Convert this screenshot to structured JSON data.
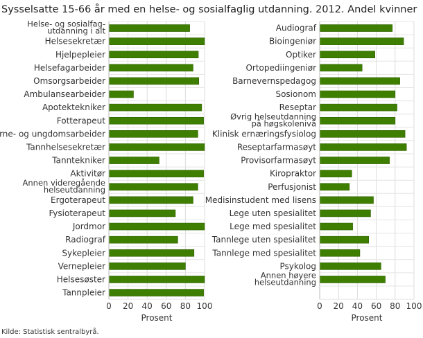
{
  "title": "Sysselsatte 15-66 år med en helse- og sosialfaglig utdanning. 2012. Andel kvinner",
  "source": "Kilde: Statistisk sentralbyrå.",
  "chart_data": [
    {
      "type": "bar",
      "orientation": "horizontal",
      "xlabel": "Prosent",
      "xlim": [
        0,
        100
      ],
      "xticks": [
        "0",
        "20",
        "40",
        "60",
        "80",
        "100"
      ],
      "grid": true,
      "bar_color": "#3e7e00",
      "categories": [
        "Helse- og sosialfag-\nutdanning i alt",
        "Helsesekretær",
        "Hjelpepleier",
        "Helsefagarbeider",
        "Omsorgsarbeider",
        "Ambulansearbeider",
        "Apotektekniker",
        "Fotterapeut",
        "Barne- og ungdomsarbeider",
        "Tannhelsesekretær",
        "Tanntekniker",
        "Aktivitør",
        "Annen videregående\nhelseutdanning",
        "Ergoterapeut",
        "Fysioterapeut",
        "Jordmor",
        "Radiograf",
        "Sykepleier",
        "Vernepleier",
        "Helsesøster",
        "Tannpleier"
      ],
      "values": [
        84.5,
        100,
        93.5,
        88,
        94,
        25.7,
        97,
        99,
        93,
        100,
        52.5,
        99,
        93,
        88,
        69.5,
        100,
        72,
        89,
        80,
        100,
        99
      ]
    },
    {
      "type": "bar",
      "orientation": "horizontal",
      "xlabel": "Prosent",
      "xlim": [
        0,
        100
      ],
      "xticks": [
        "0",
        "20",
        "40",
        "60",
        "80",
        "100"
      ],
      "grid": true,
      "bar_color": "#3e7e00",
      "categories": [
        "Audiograf",
        "Bioingeniør",
        "Optiker",
        "Ortopediingeniør",
        "Barnevernspedagog",
        "Sosionom",
        "Reseptar",
        "Øvrig helseutdanning\npå høgskolenivå",
        "Klinisk ernæringsfysiolog",
        "Reseptarfarmasøyt",
        "Provisorfarmasøyt",
        "Kiropraktor",
        "Perfusjonist",
        "Medisinstudent med lisens",
        "Lege uten spesialitet",
        "Lege med spesialitet",
        "Tannlege uten spesialitet",
        "Tannlege med spesialitet",
        "Psykolog",
        "Annen høyere\nhelseutdanning"
      ],
      "values": [
        77,
        89,
        58.6,
        45,
        85,
        80,
        82,
        80,
        90.5,
        92,
        74,
        34,
        31.5,
        57,
        54,
        35,
        52,
        42.6,
        65,
        69.5
      ]
    }
  ]
}
